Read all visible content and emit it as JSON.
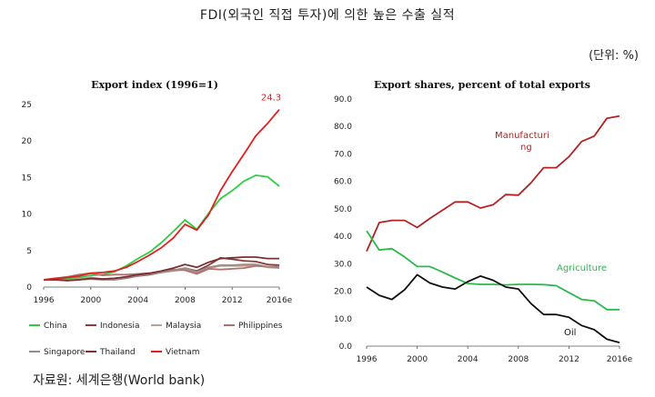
{
  "page": {
    "title": "FDI(외국인 직접 투자)에 의한 높은 수출 실적",
    "unit": "(단위: %)",
    "source": "자료원: 세계은행(World bank)"
  },
  "chart_data": [
    {
      "type": "line",
      "title": "Export index (1996=1)",
      "x": [
        "1996",
        "1997",
        "1998",
        "1999",
        "2000",
        "2001",
        "2002",
        "2003",
        "2004",
        "2005",
        "2006",
        "2007",
        "2008",
        "2009",
        "2010",
        "2011",
        "2012",
        "2013",
        "2014",
        "2015",
        "2016e"
      ],
      "x_tick_labels": [
        "1996",
        "2000",
        "2004",
        "2008",
        "2012",
        "2016e"
      ],
      "ylim": [
        0,
        25
      ],
      "y_ticks": [
        "0",
        "5",
        "10",
        "15",
        "20",
        "25"
      ],
      "grid": false,
      "legend_position": "bottom",
      "annotations": [
        {
          "text": "24.3",
          "series": "Vietnam",
          "color": "#e02020"
        }
      ],
      "series": [
        {
          "name": "China",
          "color": "#2ecc40",
          "values": [
            1.0,
            1.2,
            1.2,
            1.3,
            1.6,
            1.7,
            2.1,
            2.9,
            3.9,
            4.8,
            6.1,
            7.6,
            9.2,
            7.9,
            10.1,
            12.1,
            13.2,
            14.5,
            15.3,
            15.1,
            13.8
          ]
        },
        {
          "name": "Indonesia",
          "color": "#8b3a3a",
          "values": [
            1.0,
            1.1,
            1.0,
            1.0,
            1.3,
            1.1,
            1.2,
            1.3,
            1.5,
            1.7,
            2.0,
            2.3,
            2.6,
            2.2,
            3.0,
            4.0,
            3.8,
            3.6,
            3.5,
            3.1,
            3.0
          ]
        },
        {
          "name": "Malaysia",
          "color": "#c2a08a",
          "values": [
            1.0,
            1.0,
            1.0,
            1.1,
            1.3,
            1.1,
            1.2,
            1.3,
            1.6,
            1.8,
            2.0,
            2.2,
            2.4,
            2.0,
            2.6,
            2.9,
            2.9,
            2.9,
            3.0,
            2.7,
            2.6
          ]
        },
        {
          "name": "Philippines",
          "color": "#b07070",
          "values": [
            1.0,
            1.2,
            1.4,
            1.7,
            1.9,
            1.6,
            1.7,
            1.7,
            1.8,
            1.9,
            2.1,
            2.4,
            2.3,
            1.8,
            2.5,
            2.4,
            2.5,
            2.6,
            2.9,
            2.8,
            2.8
          ]
        },
        {
          "name": "Singapore",
          "color": "#9a8a8a",
          "values": [
            1.0,
            1.0,
            0.9,
            1.0,
            1.1,
            1.0,
            1.0,
            1.2,
            1.5,
            1.8,
            2.0,
            2.3,
            2.6,
            2.1,
            2.7,
            3.0,
            3.0,
            3.1,
            3.1,
            2.8,
            2.7
          ]
        },
        {
          "name": "Thailand",
          "color": "#7a3030",
          "values": [
            1.0,
            1.0,
            0.9,
            1.0,
            1.2,
            1.1,
            1.2,
            1.4,
            1.7,
            1.9,
            2.2,
            2.6,
            3.1,
            2.7,
            3.4,
            3.9,
            4.0,
            4.1,
            4.1,
            3.9,
            3.9
          ]
        },
        {
          "name": "Vietnam",
          "color": "#e02020",
          "values": [
            1.0,
            1.2,
            1.3,
            1.5,
            1.9,
            2.0,
            2.2,
            2.7,
            3.5,
            4.4,
            5.4,
            6.7,
            8.6,
            7.8,
            9.9,
            13.2,
            15.8,
            18.2,
            20.7,
            22.4,
            24.3
          ]
        }
      ]
    },
    {
      "type": "line",
      "title": "Export shares, percent of total exports",
      "x": [
        "1996",
        "1997",
        "1998",
        "1999",
        "2000",
        "2001",
        "2002",
        "2003",
        "2004",
        "2005",
        "2006",
        "2007",
        "2008",
        "2009",
        "2010",
        "2011",
        "2012",
        "2013",
        "2014",
        "2015",
        "2016e"
      ],
      "x_tick_labels": [
        "1996",
        "2000",
        "2004",
        "2008",
        "2012",
        "2016e"
      ],
      "ylim": [
        0,
        90
      ],
      "y_ticks": [
        "0.0",
        "10.0",
        "20.0",
        "30.0",
        "40.0",
        "50.0",
        "60.0",
        "70.0",
        "80.0",
        "90.0"
      ],
      "grid": false,
      "legend_position": "inline labels",
      "series": [
        {
          "name": "Manufacturing",
          "label_text": [
            "Manufacturi",
            "ng"
          ],
          "color": "#b22222",
          "values": [
            34.5,
            45.0,
            45.8,
            45.8,
            43.2,
            46.5,
            49.5,
            52.5,
            52.5,
            50.3,
            51.5,
            55.2,
            55.0,
            59.5,
            65.0,
            65.0,
            69.0,
            74.5,
            76.5,
            83.0,
            83.8
          ]
        },
        {
          "name": "Agriculture",
          "label_text": [
            "Agriculture"
          ],
          "color": "#2db84d",
          "values": [
            42.0,
            35.0,
            35.5,
            32.5,
            29.0,
            29.0,
            27.0,
            24.8,
            22.8,
            22.5,
            22.5,
            22.3,
            22.5,
            22.5,
            22.4,
            22.0,
            19.5,
            17.0,
            16.5,
            13.3,
            13.3
          ]
        },
        {
          "name": "Oil",
          "label_text": [
            "Oil"
          ],
          "color": "#111111",
          "values": [
            21.5,
            18.5,
            17.0,
            20.5,
            26.0,
            23.0,
            21.5,
            20.8,
            23.5,
            25.5,
            24.0,
            21.5,
            20.8,
            15.5,
            11.5,
            11.5,
            10.5,
            7.5,
            6.0,
            2.5,
            1.3
          ]
        }
      ]
    }
  ]
}
